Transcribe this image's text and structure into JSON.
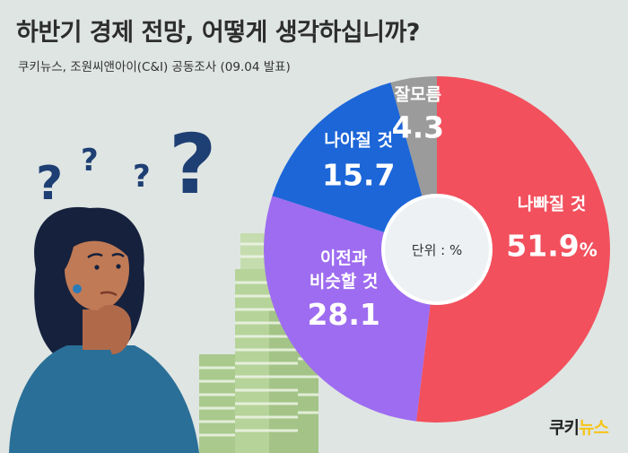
{
  "header": {
    "title": "하반기 경제 전망, 어떻게 생각하십니까?",
    "subtitle": "쿠키뉴스, 조원씨앤아이(C&I) 공동조사 (09.04 발표)"
  },
  "logo": {
    "text_main": "쿠키",
    "text_accent": "뉴스"
  },
  "colors": {
    "background": "#dfe5e3",
    "worse": "#f2505d",
    "similar": "#9e6cf0",
    "better": "#1c66d8",
    "unknown": "#9b9b9b",
    "center": "#edf1f4"
  },
  "chart_data": {
    "type": "pie",
    "donut": true,
    "unit_label": "단위 : %",
    "start_angle_deg": 0,
    "direction": "clockwise",
    "slices": [
      {
        "label": "나빠질 것",
        "value": 51.9,
        "value_text": "51.9",
        "suffix": "%",
        "color": "#f2505d"
      },
      {
        "label": "이전과\n비슷할 것",
        "value": 28.1,
        "value_text": "28.1",
        "suffix": "",
        "color": "#9e6cf0"
      },
      {
        "label": "나아질 것",
        "value": 15.7,
        "value_text": "15.7",
        "suffix": "",
        "color": "#1c66d8"
      },
      {
        "label": "잘모름",
        "value": 4.3,
        "value_text": "4.3",
        "suffix": "",
        "color": "#9b9b9b"
      }
    ]
  }
}
